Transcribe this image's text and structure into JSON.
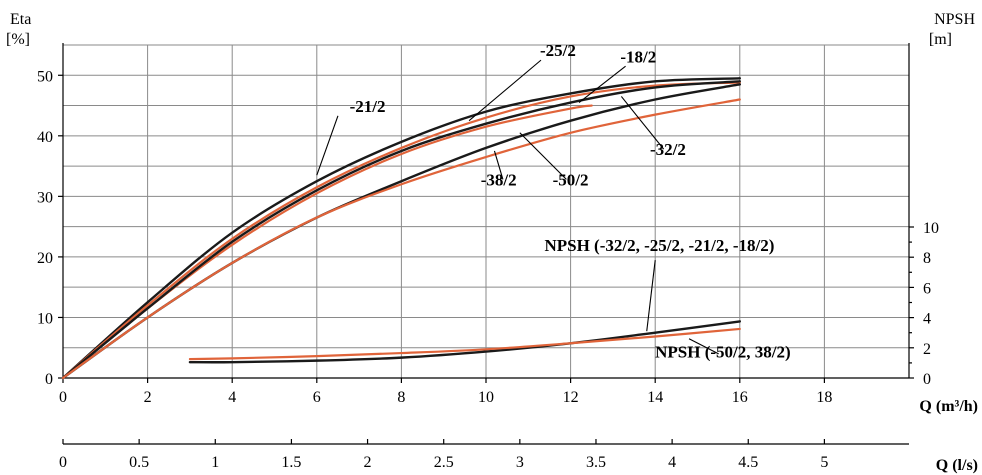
{
  "chart_data": {
    "type": "line",
    "y_left_label": "Eta",
    "y_left_unit": "[%]",
    "y_right_label": "NPSH",
    "y_right_unit": "[m]",
    "x_label": "Q (m³/h)",
    "x2_label": "Q (l/s)",
    "x_range": [
      0,
      20
    ],
    "y_left_range": [
      0,
      55
    ],
    "y_right_range": [
      0,
      10
    ],
    "x_ticks": [
      "0",
      "2",
      "4",
      "6",
      "8",
      "10",
      "12",
      "14",
      "16",
      "18"
    ],
    "x2_ticks": [
      "0",
      "0.5",
      "1",
      "1.5",
      "2",
      "2.5",
      "3",
      "3.5",
      "4",
      "4.5",
      "5"
    ],
    "y_left_ticks": [
      "0",
      "10",
      "20",
      "30",
      "40",
      "50"
    ],
    "y_right_ticks": [
      "0",
      "2",
      "4",
      "6",
      "8",
      "10"
    ],
    "grid": true,
    "colors": {
      "black_series": "#1a1a1a",
      "orange_series": "#e0643a"
    },
    "series": [
      {
        "name": "-25/2",
        "color": "#1a1a1a",
        "axis": "left",
        "x": [
          0,
          2,
          4,
          6,
          8,
          10,
          12,
          14,
          16
        ],
        "y": [
          0,
          12.5,
          24,
          32.5,
          39,
          44,
          47,
          49,
          49.5
        ]
      },
      {
        "name": "-21/2",
        "color": "#e0643a",
        "axis": "left",
        "x": [
          0,
          2,
          4,
          6,
          8,
          10,
          12,
          14,
          16
        ],
        "y": [
          0,
          12,
          23,
          31.5,
          38,
          43,
          46.5,
          48.3,
          48.8
        ]
      },
      {
        "name": "-18/2",
        "color": "#e0643a",
        "axis": "left",
        "x": [
          0,
          2,
          4,
          6,
          8,
          10,
          12,
          12.5
        ],
        "y": [
          0,
          11.5,
          22,
          30.5,
          37,
          41.5,
          44.5,
          45
        ]
      },
      {
        "name": "-32/2",
        "color": "#1a1a1a",
        "axis": "left",
        "x": [
          0,
          2,
          4,
          6,
          8,
          10,
          12,
          14,
          16
        ],
        "y": [
          0,
          11.5,
          22.5,
          31,
          37.5,
          42,
          45.5,
          48,
          49
        ]
      },
      {
        "name": "-50/2",
        "color": "#1a1a1a",
        "axis": "left",
        "x": [
          0,
          2,
          4,
          6,
          8,
          10,
          12,
          14,
          16
        ],
        "y": [
          0,
          10,
          19,
          26.5,
          32.5,
          38,
          42.5,
          46,
          48.5
        ]
      },
      {
        "name": "-38/2",
        "color": "#e0643a",
        "axis": "left",
        "x": [
          0,
          2,
          4,
          6,
          8,
          10,
          12,
          14,
          16
        ],
        "y": [
          0,
          10,
          19,
          26.5,
          32,
          36.5,
          40.5,
          43.5,
          46
        ]
      },
      {
        "name": "NPSH (-32/2, -25/2, -21/2, -18/2)",
        "color": "#1a1a1a",
        "axis": "right",
        "x": [
          3,
          4,
          6,
          8,
          10,
          12,
          14,
          16
        ],
        "y": [
          1.05,
          1.05,
          1.15,
          1.35,
          1.75,
          2.3,
          3.0,
          3.75
        ]
      },
      {
        "name": "NPSH (-50/2, 38/2)",
        "color": "#e0643a",
        "axis": "right",
        "x": [
          3,
          4,
          6,
          8,
          10,
          12,
          14,
          16
        ],
        "y": [
          1.25,
          1.3,
          1.45,
          1.65,
          1.9,
          2.3,
          2.75,
          3.25
        ]
      }
    ],
    "annotations": [
      {
        "text": "-25/2",
        "x": 11.7,
        "y": 53.2,
        "axis": "left",
        "leader": [
          [
            11.3,
            52.5
          ],
          [
            9.6,
            42.5
          ]
        ]
      },
      {
        "text": "-18/2",
        "x": 13.6,
        "y": 52.1,
        "axis": "left",
        "leader": [
          [
            13.3,
            51.5
          ],
          [
            12.2,
            45.5
          ]
        ]
      },
      {
        "text": "-21/2",
        "x": 7.2,
        "y": 43.9,
        "axis": "left",
        "leader": [
          [
            6.5,
            43.3
          ],
          [
            6.0,
            33.5
          ]
        ]
      },
      {
        "text": "-32/2",
        "x": 14.3,
        "y": 36.8,
        "axis": "left",
        "leader": [
          [
            14.2,
            37.8
          ],
          [
            13.2,
            46.5
          ]
        ]
      },
      {
        "text": "-50/2",
        "x": 12.0,
        "y": 31.8,
        "axis": "left",
        "leader": [
          [
            11.9,
            32.8
          ],
          [
            10.8,
            40.5
          ]
        ]
      },
      {
        "text": "-38/2",
        "x": 10.3,
        "y": 31.8,
        "axis": "left",
        "leader": [
          [
            10.4,
            32.8
          ],
          [
            10.2,
            37.5
          ]
        ]
      },
      {
        "text": "NPSH (-32/2, -25/2, -21/2, -18/2)",
        "x": 14.1,
        "y": 8.4,
        "axis": "right",
        "leader": [
          [
            14.0,
            7.8
          ],
          [
            13.8,
            3.1
          ]
        ]
      },
      {
        "text": "NPSH (-50/2, 38/2)",
        "x": 15.6,
        "y": 1.35,
        "axis": "right",
        "leader": [
          [
            15.5,
            1.6
          ],
          [
            14.8,
            2.6
          ]
        ]
      }
    ]
  }
}
